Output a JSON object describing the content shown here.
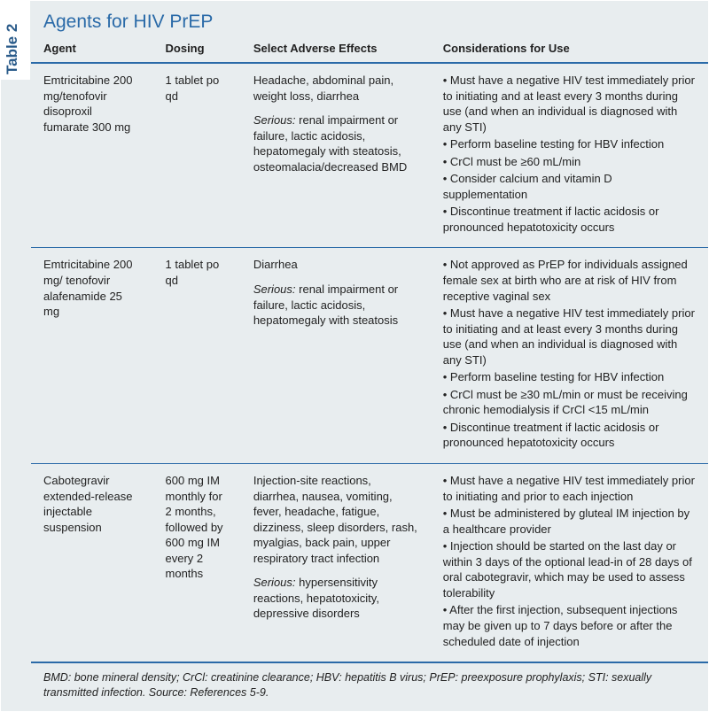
{
  "colors": {
    "header_blue": "#2a6aa8",
    "tab_text": "#2a5b8a",
    "panel_bg": "#e8edef",
    "text": "#222222",
    "rule": "#2a6aa8"
  },
  "tab_label": "Table 2",
  "title": "Agents for HIV PrEP",
  "columns": {
    "agent": "Agent",
    "dosing": "Dosing",
    "effects": "Select Adverse Effects",
    "consid": "Considerations for Use"
  },
  "serious_label": "Serious:",
  "rows": [
    {
      "agent": "Emtricitabine 200 mg/tenofovir disoproxil fumarate 300 mg",
      "dosing": "1 tablet po qd",
      "effects_main": "Headache, abdominal pain, weight loss, diarrhea",
      "effects_serious": "renal impairment or failure, lactic acidosis, hepatomegaly with steatosis, osteomalacia/decreased BMD",
      "considerations": [
        "Must have a negative HIV test immediately prior to initiating and at least every 3 months during use (and when an individual is diagnosed with any STI)",
        "Perform baseline testing for HBV infection",
        "CrCl must be ≥60 mL/min",
        "Consider calcium and vitamin D supplementation",
        "Discontinue treatment if lactic acidosis or pronounced hepatotoxicity occurs"
      ]
    },
    {
      "agent": "Emtricitabine 200 mg/ tenofovir alafenamide 25 mg",
      "dosing": "1 tablet po qd",
      "effects_main": "Diarrhea",
      "effects_serious": "renal impairment or failure, lactic acidosis, hepatomegaly with steatosis",
      "considerations": [
        "Not approved as PrEP for individuals assigned female sex at birth who are at risk of HIV from receptive vaginal sex",
        "Must have a negative HIV test immediately prior to initiating and at least every 3 months during use (and when an individual is diagnosed with any STI)",
        "Perform baseline testing for HBV infection",
        "CrCl must be ≥30 mL/min or must be receiving chronic hemodialysis if CrCl <15 mL/min",
        "Discontinue treatment if lactic acidosis or pronounced hepatotoxicity occurs"
      ]
    },
    {
      "agent": "Cabotegravir extended-release injectable suspension",
      "dosing": "600 mg IM monthly for 2 months, followed by 600 mg IM every 2 months",
      "effects_main": "Injection-site reactions, diarrhea, nausea, vomiting, fever, headache, fatigue, dizziness, sleep disorders, rash, myalgias, back pain, upper respiratory tract infection",
      "effects_serious": "hypersensitivity reactions, hepatotoxicity, depressive disorders",
      "considerations": [
        "Must have a negative HIV test immediately prior to initiating and prior to each injection",
        "Must be administered by gluteal IM injection by a healthcare provider",
        "Injection should be started on the last day or within 3 days of the optional lead-in of 28 days of oral cabotegravir, which may be used to assess tolerability",
        "After the first injection, subsequent injections may be given up to 7 days before or after the scheduled date of injection"
      ]
    }
  ],
  "footnote": "BMD: bone mineral density; CrCl: creatinine clearance; HBV: hepatitis B virus; PrEP: preexposure prophylaxis; STI: sexually transmitted infection. Source: References 5-9."
}
